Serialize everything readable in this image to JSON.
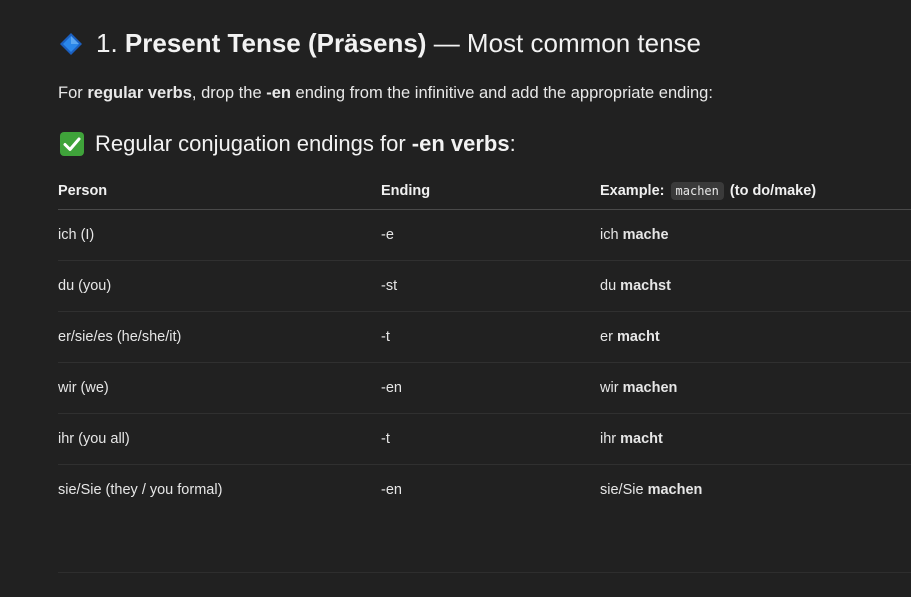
{
  "heading": {
    "number": "1.",
    "title_bold": "Present Tense (Präsens)",
    "title_rest": " — Most common tense"
  },
  "intro": {
    "part1": "For ",
    "bold1": "regular verbs",
    "part2": ", drop the ",
    "bold2": "-en",
    "part3": " ending from the infinitive and add the appropriate ending:"
  },
  "subheading": {
    "part1": "Regular conjugation endings for ",
    "bold": "-en verbs",
    "part2": ":"
  },
  "table": {
    "headers": {
      "person": "Person",
      "ending": "Ending",
      "example_prefix": "Example:",
      "example_code": "machen",
      "example_suffix": "(to do/make)"
    },
    "rows": [
      {
        "person": "ich (I)",
        "ending": "-e",
        "pronoun": "ich",
        "verb": "mache"
      },
      {
        "person": "du (you)",
        "ending": "-st",
        "pronoun": "du",
        "verb": "machst"
      },
      {
        "person": "er/sie/es (he/she/it)",
        "ending": "-t",
        "pronoun": "er",
        "verb": "macht"
      },
      {
        "person": "wir (we)",
        "ending": "-en",
        "pronoun": "wir",
        "verb": "machen"
      },
      {
        "person": "ihr (you all)",
        "ending": "-t",
        "pronoun": "ihr",
        "verb": "macht"
      },
      {
        "person": "sie/Sie (they / you formal)",
        "ending": "-en",
        "pronoun": "sie/Sie",
        "verb": "machen"
      }
    ]
  },
  "icons": {
    "heading_icon": "blue-diamond-icon",
    "subheading_icon": "check-mark-icon"
  },
  "colors": {
    "background": "#212121",
    "diamond": "#1e6fd9",
    "check_bg": "#3fa33a"
  }
}
